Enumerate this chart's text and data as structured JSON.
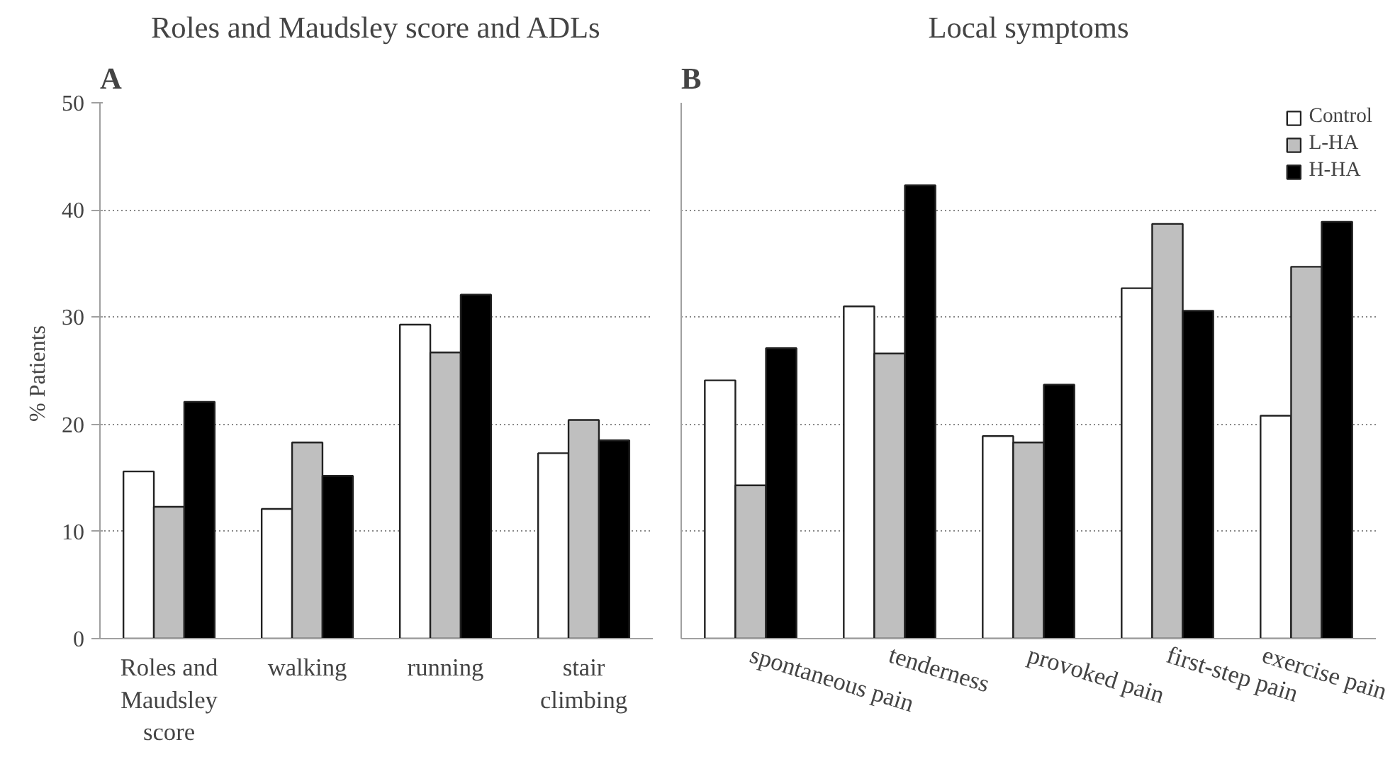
{
  "chart_data": [
    {
      "type": "bar",
      "title": "Roles and Maudsley score and ADLs",
      "annotations": [
        "A"
      ],
      "ylabel": "%  Patients",
      "categories": [
        "Roles and Maudsley score",
        "walking",
        "running",
        "stair climbing"
      ],
      "series": [
        {
          "color": "#ffffff",
          "values": [
            15.6,
            12.1,
            29.3,
            17.3
          ]
        },
        {
          "color": "#bfbfbf",
          "values": [
            12.3,
            18.3,
            26.7,
            20.4
          ]
        },
        {
          "color": "#000000",
          "values": [
            22.1,
            15.2,
            32.1,
            18.5
          ]
        }
      ],
      "ylim": [
        0,
        50
      ],
      "yticks": [
        0,
        10,
        20,
        30,
        40,
        50
      ],
      "grid": "y",
      "legend": false
    },
    {
      "type": "bar",
      "title": "Local symptoms",
      "annotations": [
        "B"
      ],
      "categories": [
        "spontaneous pain",
        "tenderness",
        "provoked pain",
        "first-step pain",
        "exercise pain"
      ],
      "series": [
        {
          "name": "Control",
          "color": "#ffffff",
          "values": [
            24.1,
            31.0,
            18.9,
            32.7,
            20.8
          ]
        },
        {
          "name": "L-HA",
          "color": "#bfbfbf",
          "values": [
            14.3,
            26.6,
            18.3,
            38.7,
            34.7
          ]
        },
        {
          "name": "H-HA",
          "color": "#000000",
          "values": [
            27.1,
            42.3,
            23.7,
            30.6,
            38.9
          ]
        }
      ],
      "ylim": [
        0,
        50
      ],
      "yticks": [
        0,
        10,
        20,
        30,
        40,
        50
      ],
      "grid": "y",
      "legend": "top right",
      "tick_labels": "x"
    }
  ]
}
